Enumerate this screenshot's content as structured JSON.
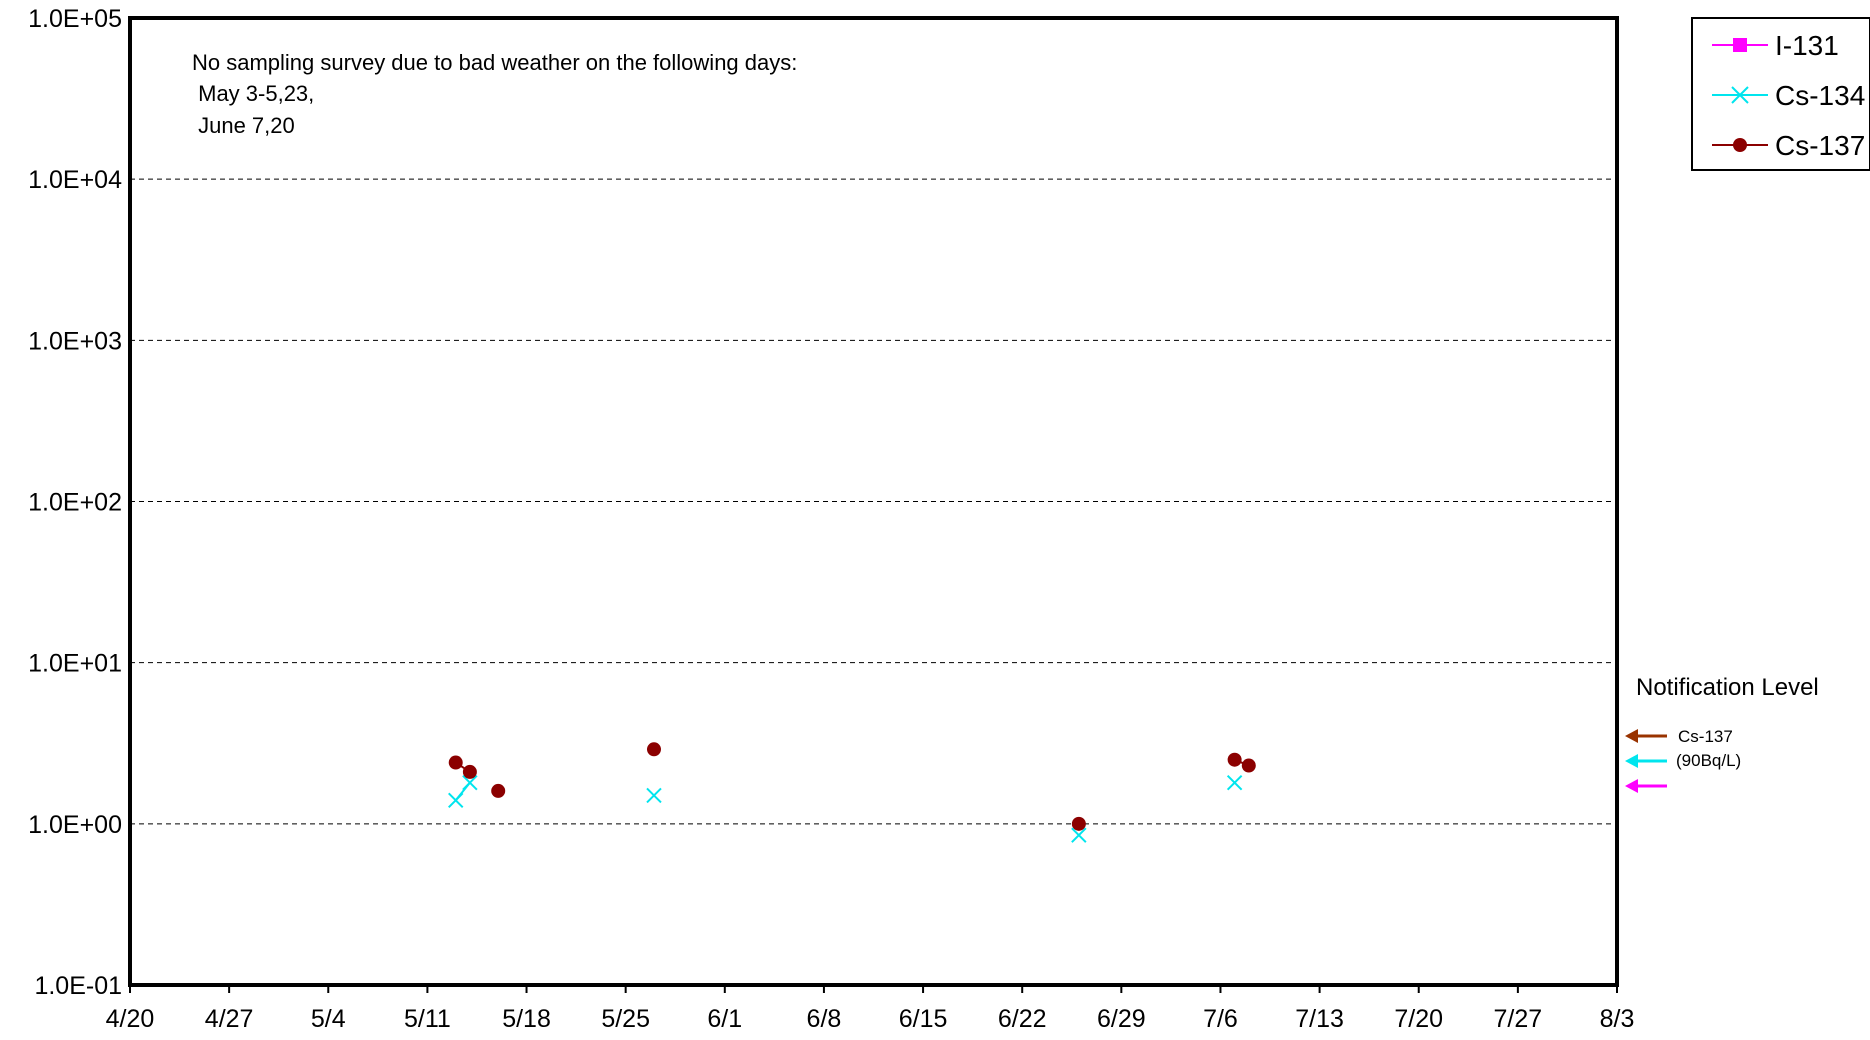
{
  "chart_data": {
    "type": "scatter",
    "title": "",
    "xlabel": "",
    "ylabel": "",
    "y_scale": "log",
    "ylim": [
      0.1,
      100000
    ],
    "xlim": [
      "4/20",
      "8/3"
    ],
    "grid": "horizontal dashed",
    "x_ticks": [
      "4/20",
      "4/27",
      "5/4",
      "5/11",
      "5/18",
      "5/25",
      "6/1",
      "6/8",
      "6/15",
      "6/22",
      "6/29",
      "7/6",
      "7/13",
      "7/20",
      "7/27",
      "8/3"
    ],
    "y_ticks": [
      {
        "value": 0.1,
        "label": "1.0E-01"
      },
      {
        "value": 1,
        "label": "1.0E+00"
      },
      {
        "value": 10,
        "label": "1.0E+01"
      },
      {
        "value": 100,
        "label": "1.0E+02"
      },
      {
        "value": 1000,
        "label": "1.0E+03"
      },
      {
        "value": 10000,
        "label": "1.0E+04"
      },
      {
        "value": 100000,
        "label": "1.0E+05"
      }
    ],
    "annotation": {
      "lines": [
        "No sampling survey due to bad weather on the following days:",
        " May 3-5,23,",
        " June 7,20"
      ]
    },
    "legend": {
      "placement": "top-right outside",
      "entries": [
        {
          "name": "I-131",
          "color": "#ff00ff",
          "marker": "square"
        },
        {
          "name": "Cs-134",
          "color": "#00e5ee",
          "marker": "x"
        },
        {
          "name": "Cs-137",
          "color": "#8b0000",
          "marker": "circle"
        }
      ]
    },
    "series": [
      {
        "name": "I-131",
        "color": "#ff00ff",
        "marker": "square",
        "points": []
      },
      {
        "name": "Cs-134",
        "color": "#00e5ee",
        "marker": "x",
        "points": [
          {
            "x": "5/13",
            "y": 1.4
          },
          {
            "x": "5/14",
            "y": 1.8
          },
          {
            "x": "5/27",
            "y": 1.5
          },
          {
            "x": "6/26",
            "y": 0.85
          },
          {
            "x": "7/7",
            "y": 1.8
          }
        ]
      },
      {
        "name": "Cs-137",
        "color": "#8b0000",
        "marker": "circle",
        "points": [
          {
            "x": "5/13",
            "y": 2.4
          },
          {
            "x": "5/14",
            "y": 2.1
          },
          {
            "x": "5/16",
            "y": 1.6
          },
          {
            "x": "5/27",
            "y": 2.9
          },
          {
            "x": "6/26",
            "y": 1.0
          },
          {
            "x": "7/7",
            "y": 2.5
          },
          {
            "x": "7/8",
            "y": 2.3
          }
        ]
      }
    ],
    "notification_level": {
      "title": "Notification Level",
      "label": "Cs-137",
      "sublabel": "(90Bq/L)",
      "arrows": [
        {
          "series": "Cs-137",
          "color": "#993300"
        },
        {
          "series": "Cs-134",
          "color": "#00e5ee"
        },
        {
          "series": "I-131",
          "color": "#ff00ff"
        }
      ]
    }
  }
}
